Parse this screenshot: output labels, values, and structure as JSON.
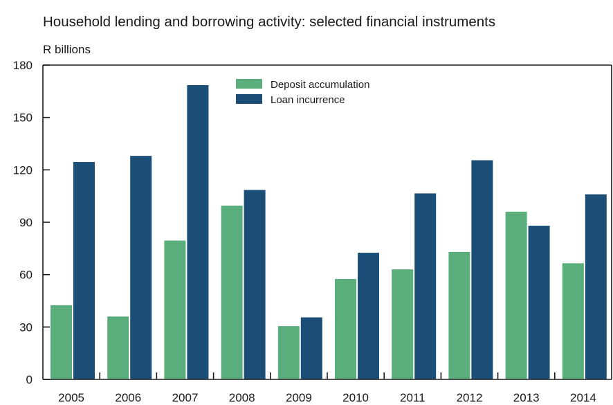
{
  "chart_data": {
    "type": "bar",
    "title": "Household lending and borrowing activity: selected financial instruments",
    "ylabel": "R billions",
    "xlabel": "",
    "categories": [
      "2005",
      "2006",
      "2007",
      "2008",
      "2009",
      "2010",
      "2011",
      "2012",
      "2013",
      "2014"
    ],
    "series": [
      {
        "name": "Deposit accumulation",
        "color": "#5aae7c",
        "values": [
          42.5,
          36,
          79.5,
          99.5,
          30.5,
          57.5,
          63,
          73,
          96,
          66.5
        ]
      },
      {
        "name": "Loan incurrence",
        "color": "#1b4e77",
        "values": [
          124.5,
          128,
          168.5,
          108.5,
          35.5,
          72.5,
          106.5,
          125.5,
          88,
          106
        ]
      }
    ],
    "ylim": [
      0,
      180
    ],
    "yticks": [
      0,
      30,
      60,
      90,
      120,
      150,
      180
    ],
    "grid": false,
    "legend_position": "top-center"
  }
}
